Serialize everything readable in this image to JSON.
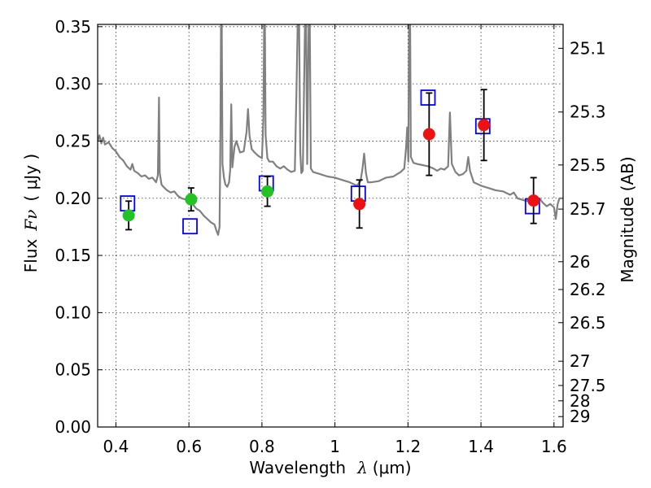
{
  "chart_data": {
    "type": "scatter",
    "title": "",
    "xlabel_text": "Wavelength",
    "xlabel_symbol": "λ",
    "xlabel_unit": "(μm)",
    "ylabel_text": "Flux",
    "ylabel_symbol": "Fν",
    "ylabel_unit": "( μJy )",
    "y2label": "Magnitude (AB)",
    "xlim": [
      0.35,
      1.625
    ],
    "ylim": [
      0.0,
      0.352
    ],
    "grid": true,
    "xticks": [
      0.4,
      0.6,
      0.8,
      1.0,
      1.2,
      1.4,
      1.6
    ],
    "xtick_labels": [
      "0.4",
      "0.6",
      "0.8",
      "1",
      "1.2",
      "1.4",
      "1.6"
    ],
    "yticks": [
      0.0,
      0.05,
      0.1,
      0.15,
      0.2,
      0.25,
      0.3,
      0.35
    ],
    "ytick_labels": [
      "0.00",
      "0.05",
      "0.10",
      "0.15",
      "0.20",
      "0.25",
      "0.30",
      "0.35"
    ],
    "mag_ticks": [
      {
        "label": "25.1",
        "flux": 0.3311
      },
      {
        "label": "25.3",
        "flux": 0.2754
      },
      {
        "label": "25.5",
        "flux": 0.2291
      },
      {
        "label": "25.7",
        "flux": 0.1905
      },
      {
        "label": "26",
        "flux": 0.1445
      },
      {
        "label": "26.2",
        "flux": 0.1202
      },
      {
        "label": "26.5",
        "flux": 0.0912
      },
      {
        "label": "27",
        "flux": 0.0575
      },
      {
        "label": "27.5",
        "flux": 0.0363
      },
      {
        "label": "28",
        "flux": 0.0229
      },
      {
        "label": "29",
        "flux": 0.0091
      }
    ],
    "colors": {
      "model": "#808080",
      "green": "#22c322",
      "red": "#ee1111",
      "model_box": "#0000ff",
      "errorbar": "#000000"
    },
    "model_spectrum": [
      [
        0.35,
        0.25
      ],
      [
        0.355,
        0.255
      ],
      [
        0.36,
        0.248
      ],
      [
        0.365,
        0.253
      ],
      [
        0.37,
        0.247
      ],
      [
        0.38,
        0.249
      ],
      [
        0.39,
        0.244
      ],
      [
        0.4,
        0.241
      ],
      [
        0.41,
        0.236
      ],
      [
        0.42,
        0.233
      ],
      [
        0.43,
        0.228
      ],
      [
        0.44,
        0.225
      ],
      [
        0.445,
        0.23
      ],
      [
        0.45,
        0.224
      ],
      [
        0.46,
        0.222
      ],
      [
        0.47,
        0.219
      ],
      [
        0.48,
        0.22
      ],
      [
        0.49,
        0.217
      ],
      [
        0.5,
        0.218
      ],
      [
        0.51,
        0.214
      ],
      [
        0.515,
        0.22
      ],
      [
        0.518,
        0.288
      ],
      [
        0.52,
        0.222
      ],
      [
        0.525,
        0.212
      ],
      [
        0.53,
        0.21
      ],
      [
        0.54,
        0.207
      ],
      [
        0.55,
        0.205
      ],
      [
        0.56,
        0.206
      ],
      [
        0.57,
        0.202
      ],
      [
        0.58,
        0.2
      ],
      [
        0.59,
        0.199
      ],
      [
        0.6,
        0.197
      ],
      [
        0.61,
        0.195
      ],
      [
        0.62,
        0.191
      ],
      [
        0.63,
        0.189
      ],
      [
        0.64,
        0.185
      ],
      [
        0.65,
        0.182
      ],
      [
        0.66,
        0.179
      ],
      [
        0.67,
        0.177
      ],
      [
        0.675,
        0.172
      ],
      [
        0.68,
        0.168
      ],
      [
        0.684,
        0.175
      ],
      [
        0.686,
        0.24
      ],
      [
        0.688,
        0.352
      ],
      [
        0.69,
        0.352
      ],
      [
        0.692,
        0.23
      ],
      [
        0.696,
        0.218
      ],
      [
        0.7,
        0.212
      ],
      [
        0.705,
        0.21
      ],
      [
        0.71,
        0.214
      ],
      [
        0.713,
        0.225
      ],
      [
        0.716,
        0.282
      ],
      [
        0.719,
        0.227
      ],
      [
        0.725,
        0.245
      ],
      [
        0.73,
        0.25
      ],
      [
        0.74,
        0.24
      ],
      [
        0.75,
        0.241
      ],
      [
        0.758,
        0.258
      ],
      [
        0.762,
        0.278
      ],
      [
        0.766,
        0.255
      ],
      [
        0.772,
        0.243
      ],
      [
        0.78,
        0.24
      ],
      [
        0.79,
        0.237
      ],
      [
        0.8,
        0.235
      ],
      [
        0.804,
        0.27
      ],
      [
        0.806,
        0.352
      ],
      [
        0.808,
        0.352
      ],
      [
        0.81,
        0.255
      ],
      [
        0.815,
        0.235
      ],
      [
        0.82,
        0.232
      ],
      [
        0.83,
        0.232
      ],
      [
        0.84,
        0.228
      ],
      [
        0.85,
        0.226
      ],
      [
        0.86,
        0.228
      ],
      [
        0.87,
        0.225
      ],
      [
        0.88,
        0.223
      ],
      [
        0.89,
        0.224
      ],
      [
        0.895,
        0.3
      ],
      [
        0.898,
        0.352
      ],
      [
        0.902,
        0.352
      ],
      [
        0.905,
        0.24
      ],
      [
        0.908,
        0.222
      ],
      [
        0.912,
        0.224
      ],
      [
        0.915,
        0.29
      ],
      [
        0.918,
        0.352
      ],
      [
        0.921,
        0.352
      ],
      [
        0.924,
        0.23
      ],
      [
        0.928,
        0.352
      ],
      [
        0.931,
        0.352
      ],
      [
        0.934,
        0.226
      ],
      [
        0.94,
        0.223
      ],
      [
        0.95,
        0.222
      ],
      [
        0.96,
        0.221
      ],
      [
        0.98,
        0.219
      ],
      [
        1.0,
        0.218
      ],
      [
        1.02,
        0.216
      ],
      [
        1.04,
        0.214
      ],
      [
        1.06,
        0.211
      ],
      [
        1.07,
        0.215
      ],
      [
        1.075,
        0.225
      ],
      [
        1.08,
        0.239
      ],
      [
        1.085,
        0.222
      ],
      [
        1.09,
        0.214
      ],
      [
        1.1,
        0.214
      ],
      [
        1.12,
        0.215
      ],
      [
        1.14,
        0.218
      ],
      [
        1.16,
        0.219
      ],
      [
        1.17,
        0.221
      ],
      [
        1.18,
        0.223
      ],
      [
        1.19,
        0.226
      ],
      [
        1.195,
        0.245
      ],
      [
        1.198,
        0.262
      ],
      [
        1.201,
        0.232
      ],
      [
        1.203,
        0.352
      ],
      [
        1.206,
        0.352
      ],
      [
        1.208,
        0.236
      ],
      [
        1.215,
        0.231
      ],
      [
        1.225,
        0.23
      ],
      [
        1.24,
        0.229
      ],
      [
        1.255,
        0.228
      ],
      [
        1.27,
        0.226
      ],
      [
        1.28,
        0.224
      ],
      [
        1.29,
        0.226
      ],
      [
        1.3,
        0.225
      ],
      [
        1.31,
        0.228
      ],
      [
        1.315,
        0.275
      ],
      [
        1.32,
        0.23
      ],
      [
        1.33,
        0.223
      ],
      [
        1.34,
        0.22
      ],
      [
        1.35,
        0.221
      ],
      [
        1.36,
        0.224
      ],
      [
        1.365,
        0.236
      ],
      [
        1.37,
        0.224
      ],
      [
        1.38,
        0.214
      ],
      [
        1.4,
        0.211
      ],
      [
        1.42,
        0.209
      ],
      [
        1.44,
        0.207
      ],
      [
        1.46,
        0.206
      ],
      [
        1.48,
        0.203
      ],
      [
        1.49,
        0.205
      ],
      [
        1.5,
        0.2
      ],
      [
        1.52,
        0.198
      ],
      [
        1.54,
        0.197
      ],
      [
        1.55,
        0.196
      ],
      [
        1.56,
        0.2
      ],
      [
        1.57,
        0.196
      ],
      [
        1.58,
        0.193
      ],
      [
        1.59,
        0.195
      ],
      [
        1.6,
        0.192
      ],
      [
        1.605,
        0.182
      ],
      [
        1.61,
        0.195
      ],
      [
        1.615,
        0.2
      ],
      [
        1.625,
        0.2
      ]
    ],
    "observations": [
      {
        "x": 0.435,
        "y": 0.185,
        "yerr": 0.0125,
        "color": "green"
      },
      {
        "x": 0.606,
        "y": 0.199,
        "yerr": 0.01,
        "color": "green"
      },
      {
        "x": 0.815,
        "y": 0.206,
        "yerr": 0.013,
        "color": "green"
      },
      {
        "x": 1.067,
        "y": 0.195,
        "yerr": 0.021,
        "color": "red"
      },
      {
        "x": 1.258,
        "y": 0.256,
        "yerr": 0.036,
        "color": "red"
      },
      {
        "x": 1.408,
        "y": 0.264,
        "yerr": 0.031,
        "color": "red"
      },
      {
        "x": 1.544,
        "y": 0.198,
        "yerr": 0.02,
        "color": "red"
      }
    ],
    "model_photometry": [
      {
        "x": 0.432,
        "y": 0.1955
      },
      {
        "x": 0.603,
        "y": 0.1755
      },
      {
        "x": 0.812,
        "y": 0.213
      },
      {
        "x": 1.064,
        "y": 0.204
      },
      {
        "x": 1.255,
        "y": 0.288
      },
      {
        "x": 1.405,
        "y": 0.263
      },
      {
        "x": 1.541,
        "y": 0.193
      }
    ]
  }
}
